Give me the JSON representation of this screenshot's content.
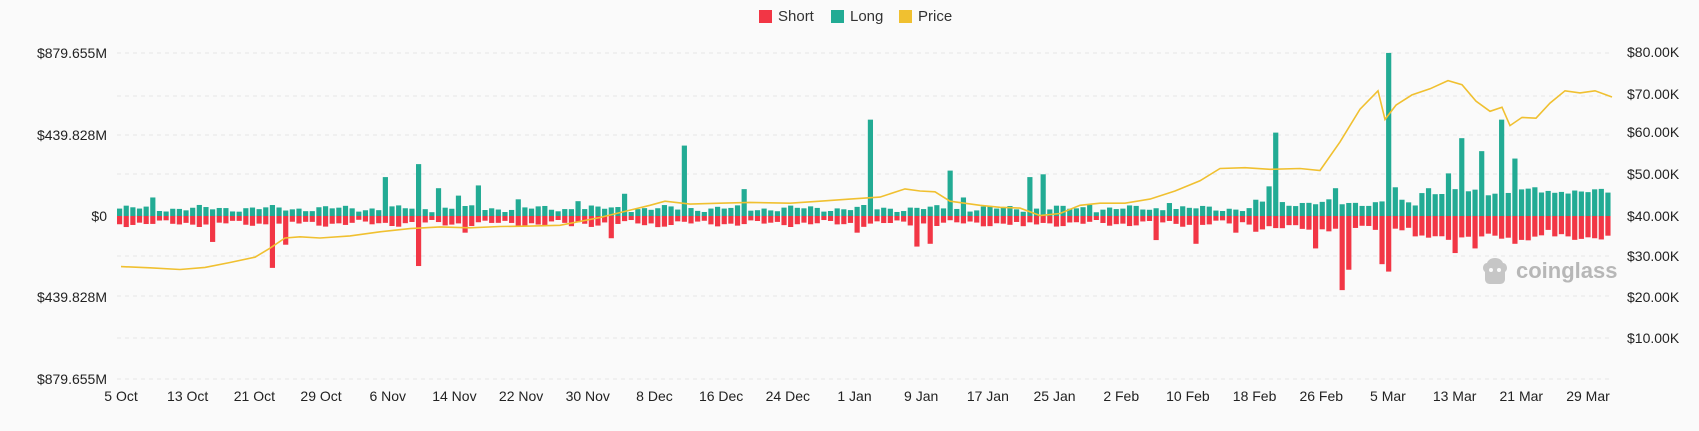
{
  "legend": {
    "short_label": "Short",
    "long_label": "Long",
    "price_label": "Price"
  },
  "watermark": {
    "text": "coinglass"
  },
  "colors": {
    "short": "#f23645",
    "long": "#22ab94",
    "price": "#f0c030"
  },
  "chart_data": {
    "type": "bar",
    "title": "",
    "xlabel": "",
    "ylabel": "",
    "left_axis_ticks": [
      "$879.655M",
      "$439.828M",
      "$0",
      "$439.828M",
      "$879.655M"
    ],
    "right_axis_ticks": [
      "$80.00K",
      "$70.00K",
      "$60.00K",
      "$50.00K",
      "$40.00K",
      "$30.00K",
      "$20.00K",
      "$10.00K"
    ],
    "ylim_left": [
      -879.655,
      879.655
    ],
    "ylim_right": [
      0,
      80000
    ],
    "grid": true,
    "legend_position": "top-center",
    "x_tick_labels": [
      "5 Oct",
      "13 Oct",
      "21 Oct",
      "29 Oct",
      "6 Nov",
      "14 Nov",
      "22 Nov",
      "30 Nov",
      "8 Dec",
      "16 Dec",
      "24 Dec",
      "1 Jan",
      "9 Jan",
      "17 Jan",
      "25 Jan",
      "2 Feb",
      "10 Feb",
      "18 Feb",
      "26 Feb",
      "5 Mar",
      "13 Mar",
      "21 Mar",
      "29 Mar"
    ],
    "series": [
      {
        "name": "Long",
        "unit": "$M",
        "values": [
          35,
          25,
          20,
          15,
          110,
          40,
          70,
          60,
          50,
          30,
          10,
          50,
          45,
          40,
          40,
          50,
          25,
          55,
          120,
          80,
          55,
          70,
          50,
          75,
          70,
          50,
          60,
          75,
          30,
          75,
          85,
          100,
          40,
          50,
          80,
          225,
          85,
          80,
          100,
          90,
          120,
          80,
          60,
          110,
          140,
          90,
          80,
          50,
          60,
          350,
          80,
          60,
          70,
          110,
          40,
          80,
          60,
          100,
          60,
          70,
          60,
          60,
          70,
          40,
          60,
          80,
          60,
          60,
          80,
          40,
          140,
          140,
          100,
          140,
          120,
          160,
          130,
          130,
          120,
          120,
          30,
          30,
          240,
          240,
          220,
          75,
          30,
          20,
          80,
          80,
          80,
          60,
          60,
          60,
          60,
          50,
          40,
          40,
          40,
          40,
          20,
          20,
          30,
          60,
          80,
          60,
          70,
          80,
          80,
          80,
          80,
          80,
          80,
          80,
          80,
          60,
          60,
          60,
          60,
          80,
          80,
          80,
          70,
          60,
          60,
          60,
          60,
          60,
          60,
          60,
          60,
          80,
          80,
          200,
          200,
          200,
          80,
          60,
          60,
          60,
          60,
          60,
          60,
          60,
          60,
          60,
          60,
          60,
          60,
          60,
          60,
          60,
          60,
          60,
          60,
          60,
          60,
          60,
          60,
          60,
          60,
          60,
          60,
          60,
          60,
          60,
          60,
          60,
          60,
          60,
          60,
          60,
          60,
          60,
          60,
          60,
          60,
          60,
          60,
          60,
          60,
          60,
          60,
          60,
          60,
          60,
          60,
          60,
          60,
          60,
          60,
          60,
          60,
          60,
          60,
          60,
          60,
          60,
          60,
          60,
          60,
          60,
          60,
          60,
          60,
          60,
          60,
          60,
          60,
          60,
          60
        ],
        "note": ""
      }
    ]
  }
}
